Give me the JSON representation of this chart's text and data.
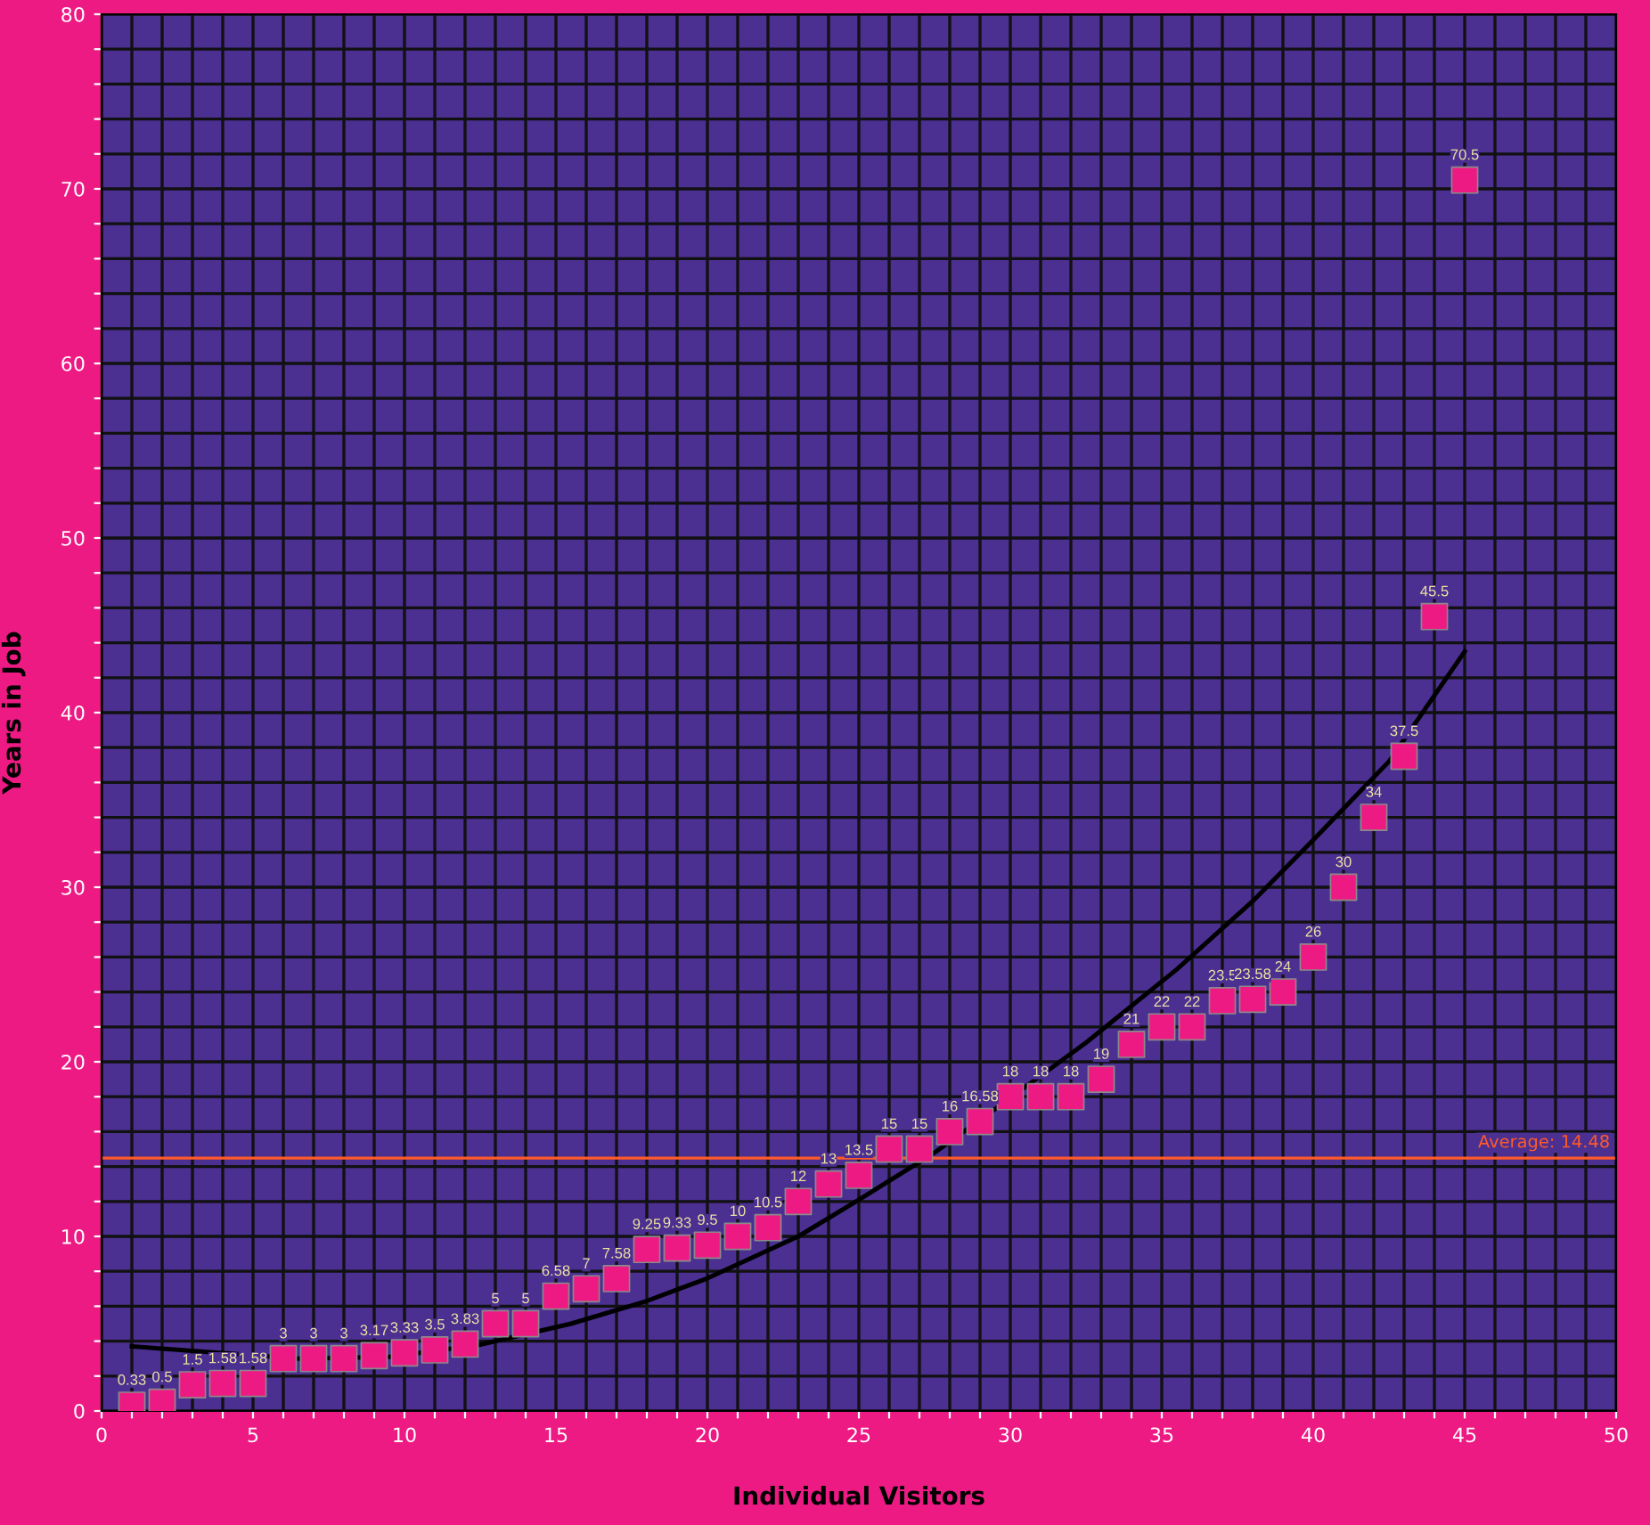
{
  "chart_data": {
    "type": "scatter",
    "xlabel": "Individual Visitors",
    "ylabel": "Years in Job",
    "xlim": [
      0,
      50
    ],
    "xticks": [
      0,
      {
        "value": 1,
        "label": null
      },
      {
        "value": 2,
        "label": null
      },
      {
        "value": 3,
        "label": null
      },
      {
        "value": 4,
        "label": null
      },
      5,
      {
        "value": 6,
        "label": null
      },
      {
        "value": 7,
        "label": null
      },
      {
        "value": 8,
        "label": null
      },
      {
        "value": 9,
        "label": null
      },
      10,
      {
        "value": 11,
        "label": null
      },
      {
        "value": 12,
        "label": null
      },
      {
        "value": 13,
        "label": null
      },
      {
        "value": 14,
        "label": null
      },
      15,
      {
        "value": 16,
        "label": null
      },
      {
        "value": 17,
        "label": null
      },
      {
        "value": 18,
        "label": null
      },
      {
        "value": 19,
        "label": null
      },
      20,
      {
        "value": 21,
        "label": null
      },
      {
        "value": 22,
        "label": null
      },
      {
        "value": 23,
        "label": null
      },
      {
        "value": 24,
        "label": null
      },
      25,
      {
        "value": 26,
        "label": null
      },
      {
        "value": 27,
        "label": null
      },
      {
        "value": 28,
        "label": null
      },
      {
        "value": 29,
        "label": null
      },
      30,
      {
        "value": 31,
        "label": null
      },
      {
        "value": 32,
        "label": null
      },
      {
        "value": 33,
        "label": null
      },
      {
        "value": 34,
        "label": null
      },
      35,
      {
        "value": 36,
        "label": null
      },
      {
        "value": 37,
        "label": null
      },
      {
        "value": 38,
        "label": null
      },
      {
        "value": 39,
        "label": null
      },
      40,
      {
        "value": 41,
        "label": null
      },
      {
        "value": 42,
        "label": null
      },
      {
        "value": 43,
        "label": null
      },
      {
        "value": 44,
        "label": null
      },
      45,
      {
        "value": 46,
        "label": null
      },
      {
        "value": 47,
        "label": null
      },
      {
        "value": 48,
        "label": null
      },
      {
        "value": 49,
        "label": null
      },
      50
    ],
    "ylim": [
      0,
      80
    ],
    "yticks": [
      0,
      {
        "value": 2,
        "label": null
      },
      {
        "value": 4,
        "label": null
      },
      {
        "value": 6,
        "label": null
      },
      {
        "value": 8,
        "label": null
      },
      10,
      {
        "value": 12,
        "label": null
      },
      {
        "value": 14,
        "label": null
      },
      {
        "value": 16,
        "label": null
      },
      {
        "value": 18,
        "label": null
      },
      20,
      {
        "value": 22,
        "label": null
      },
      {
        "value": 24,
        "label": null
      },
      {
        "value": 26,
        "label": null
      },
      {
        "value": 28,
        "label": null
      },
      30,
      {
        "value": 32,
        "label": null
      },
      {
        "value": 34,
        "label": null
      },
      {
        "value": 36,
        "label": null
      },
      {
        "value": 38,
        "label": null
      },
      40,
      {
        "value": 42,
        "label": null
      },
      {
        "value": 44,
        "label": null
      },
      {
        "value": 46,
        "label": null
      },
      {
        "value": 48,
        "label": null
      },
      50,
      {
        "value": 52,
        "label": null
      },
      {
        "value": 54,
        "label": null
      },
      {
        "value": 56,
        "label": null
      },
      {
        "value": 58,
        "label": null
      },
      60,
      {
        "value": 62,
        "label": null
      },
      {
        "value": 64,
        "label": null
      },
      {
        "value": 66,
        "label": null
      },
      {
        "value": 68,
        "label": null
      },
      70,
      {
        "value": 72,
        "label": null
      },
      {
        "value": 74,
        "label": null
      },
      {
        "value": 76,
        "label": null
      },
      {
        "value": 78,
        "label": null
      },
      80
    ],
    "grid": true,
    "legend": false,
    "series": [
      {
        "type": "scatter",
        "marker": "square",
        "color": "#ee1a84",
        "value_labels": [
          "0.33",
          "0.5",
          "1.5",
          "1.58",
          "1.58",
          "3",
          "3",
          "3",
          "3.17",
          "3.33",
          "3.5",
          "3.83",
          "5",
          "5",
          "6.58",
          "7",
          "7.58",
          "9.25",
          "9.33",
          "9.5",
          "10",
          "10.5",
          "12",
          "13",
          "13.5",
          "15",
          "15",
          "16",
          "16.58",
          "18",
          "18",
          "18",
          "19",
          "21",
          "22",
          "22",
          "23.5",
          "23.58",
          "24",
          "26",
          "30",
          "34",
          "37.5",
          "45.5",
          "70.5"
        ],
        "x": [
          1,
          2,
          3,
          4,
          5,
          6,
          7,
          8,
          9,
          10,
          11,
          12,
          13,
          14,
          15,
          16,
          17,
          18,
          19,
          20,
          21,
          22,
          23,
          24,
          25,
          26,
          27,
          28,
          29,
          30,
          31,
          32,
          33,
          34,
          35,
          36,
          37,
          38,
          39,
          40,
          41,
          42,
          43,
          44,
          45
        ],
        "values": [
          0.33,
          0.5,
          1.5,
          1.58,
          1.58,
          3,
          3,
          3,
          3.17,
          3.33,
          3.5,
          3.83,
          5,
          5,
          6.58,
          7,
          7.58,
          9.25,
          9.33,
          9.5,
          10,
          10.5,
          12,
          13,
          13.5,
          15,
          15,
          16,
          16.58,
          18,
          18,
          18,
          19,
          21,
          22,
          22,
          23.5,
          23.58,
          24,
          26,
          30,
          34,
          37.5,
          45.5,
          70.5
        ]
      },
      {
        "type": "line",
        "marker": "none",
        "color": "#000000",
        "x": [
          1,
          6.5,
          9.5,
          12.5,
          15.5,
          18,
          20,
          23,
          25,
          27.5,
          29.5,
          32.5,
          35.5,
          38,
          40,
          42.5,
          45
        ],
        "values": [
          3.7,
          3.0,
          3.1,
          3.8,
          5.0,
          6.3,
          7.6,
          10.0,
          12.1,
          14.8,
          17.3,
          21.1,
          25.3,
          29.2,
          32.7,
          37.2,
          43.5
        ]
      }
    ],
    "ref_lines": [
      {
        "axis": "y",
        "value": 14.48,
        "label": "Average: 14.48",
        "color": "#ff5a2a",
        "line_style": "solid"
      }
    ]
  }
}
